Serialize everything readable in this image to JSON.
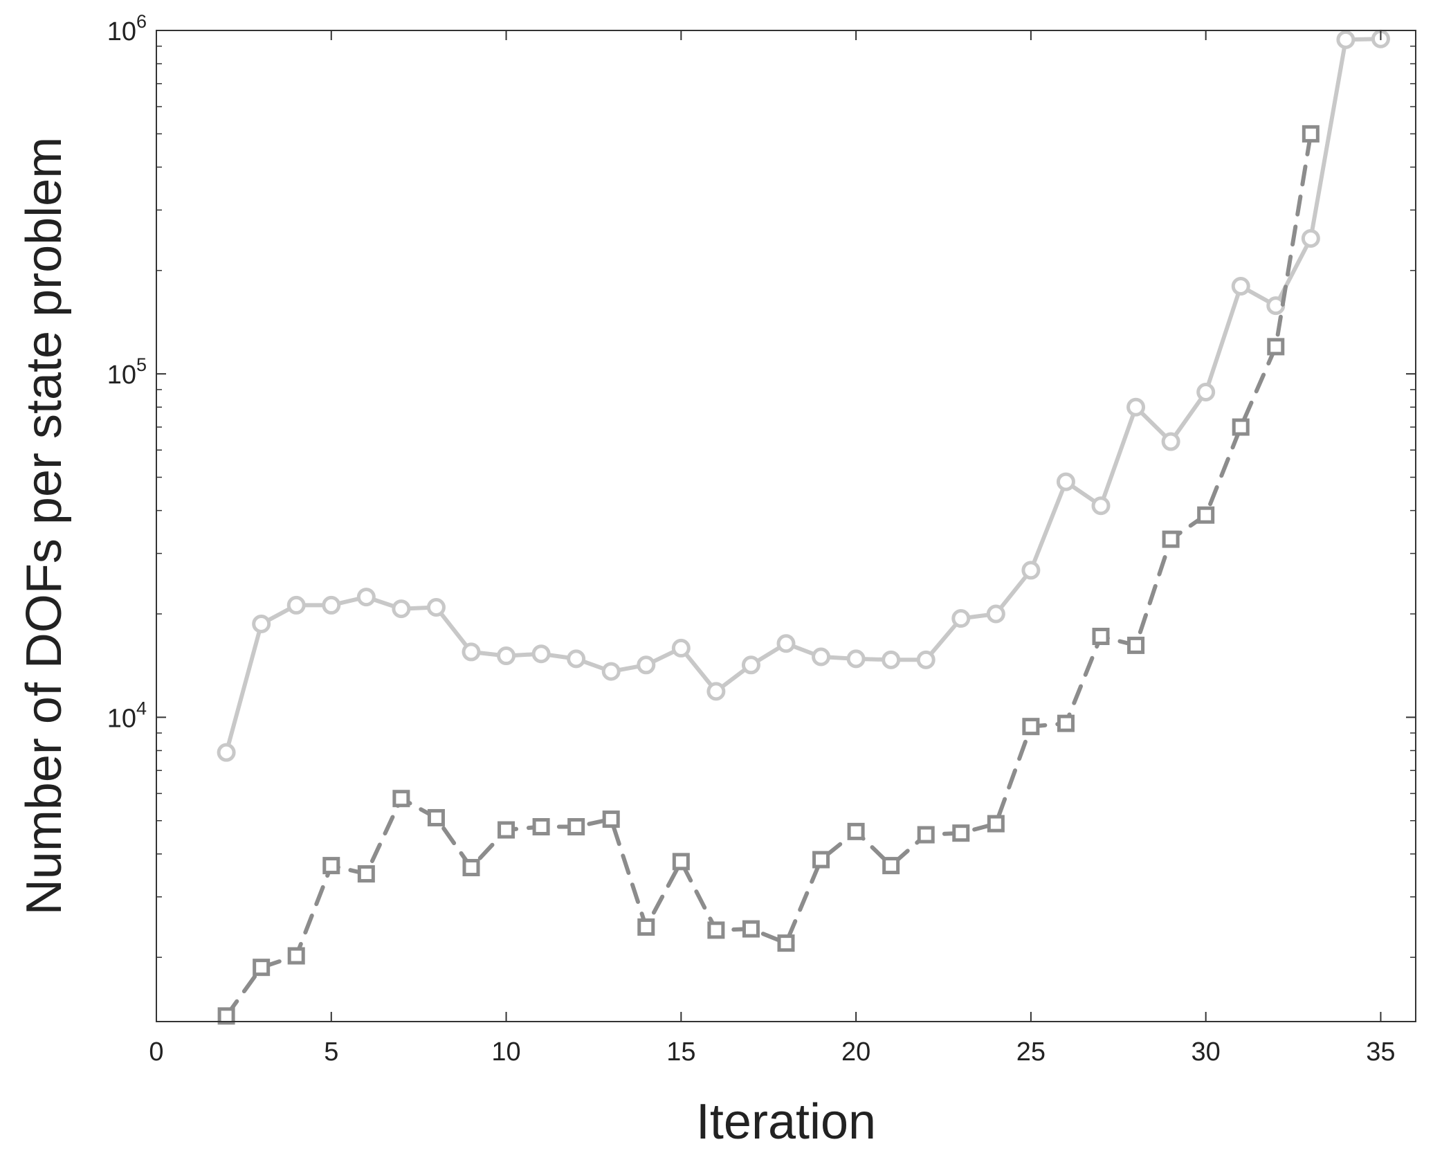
{
  "chart_data": {
    "type": "line",
    "title": "",
    "xlabel": "Iteration",
    "ylabel": "Number of DOFs per state problem",
    "xlim": [
      0,
      36
    ],
    "ylim": [
      1300,
      1000000
    ],
    "yscale": "log",
    "xticks": [
      0,
      5,
      10,
      15,
      20,
      25,
      30,
      35
    ],
    "yticks": [
      {
        "value": 10000,
        "base": "10",
        "exp": "4"
      },
      {
        "value": 100000,
        "base": "10",
        "exp": "5"
      },
      {
        "value": 1000000,
        "base": "10",
        "exp": "6"
      }
    ],
    "grid": false,
    "legend": "none",
    "series": [
      {
        "color": "#c8c8c8",
        "line_style": "solid",
        "marker": "circle",
        "x": [
          2,
          3,
          4,
          5,
          6,
          7,
          8,
          9,
          10,
          11,
          12,
          13,
          14,
          15,
          16,
          17,
          18,
          19,
          20,
          21,
          22,
          23,
          24,
          25,
          26,
          27,
          28,
          29,
          30,
          31,
          32,
          33,
          34,
          35
        ],
        "y": [
          7900,
          18700,
          21200,
          21200,
          22400,
          20700,
          20900,
          15500,
          15100,
          15300,
          14800,
          13600,
          14200,
          15900,
          11900,
          14200,
          16400,
          15000,
          14800,
          14700,
          14700,
          19400,
          20000,
          26800,
          48500,
          41300,
          80000,
          63500,
          88500,
          180000,
          158000,
          248000,
          940000,
          945000
        ]
      },
      {
        "color": "#8c8c8c",
        "line_style": "dashed",
        "marker": "square",
        "x": [
          2,
          3,
          4,
          5,
          6,
          7,
          8,
          9,
          10,
          11,
          12,
          13,
          14,
          15,
          16,
          17,
          18,
          19,
          20,
          21,
          22,
          23,
          24,
          25,
          26,
          27,
          28,
          29,
          30,
          31,
          32,
          33
        ],
        "y": [
          1350,
          1870,
          2020,
          3700,
          3500,
          5800,
          5100,
          3650,
          4700,
          4800,
          4800,
          5050,
          2450,
          3800,
          2400,
          2420,
          2200,
          3850,
          4650,
          3700,
          4550,
          4600,
          4900,
          9400,
          9600,
          17200,
          16200,
          33000,
          38800,
          70000,
          120000,
          500000
        ]
      }
    ]
  }
}
